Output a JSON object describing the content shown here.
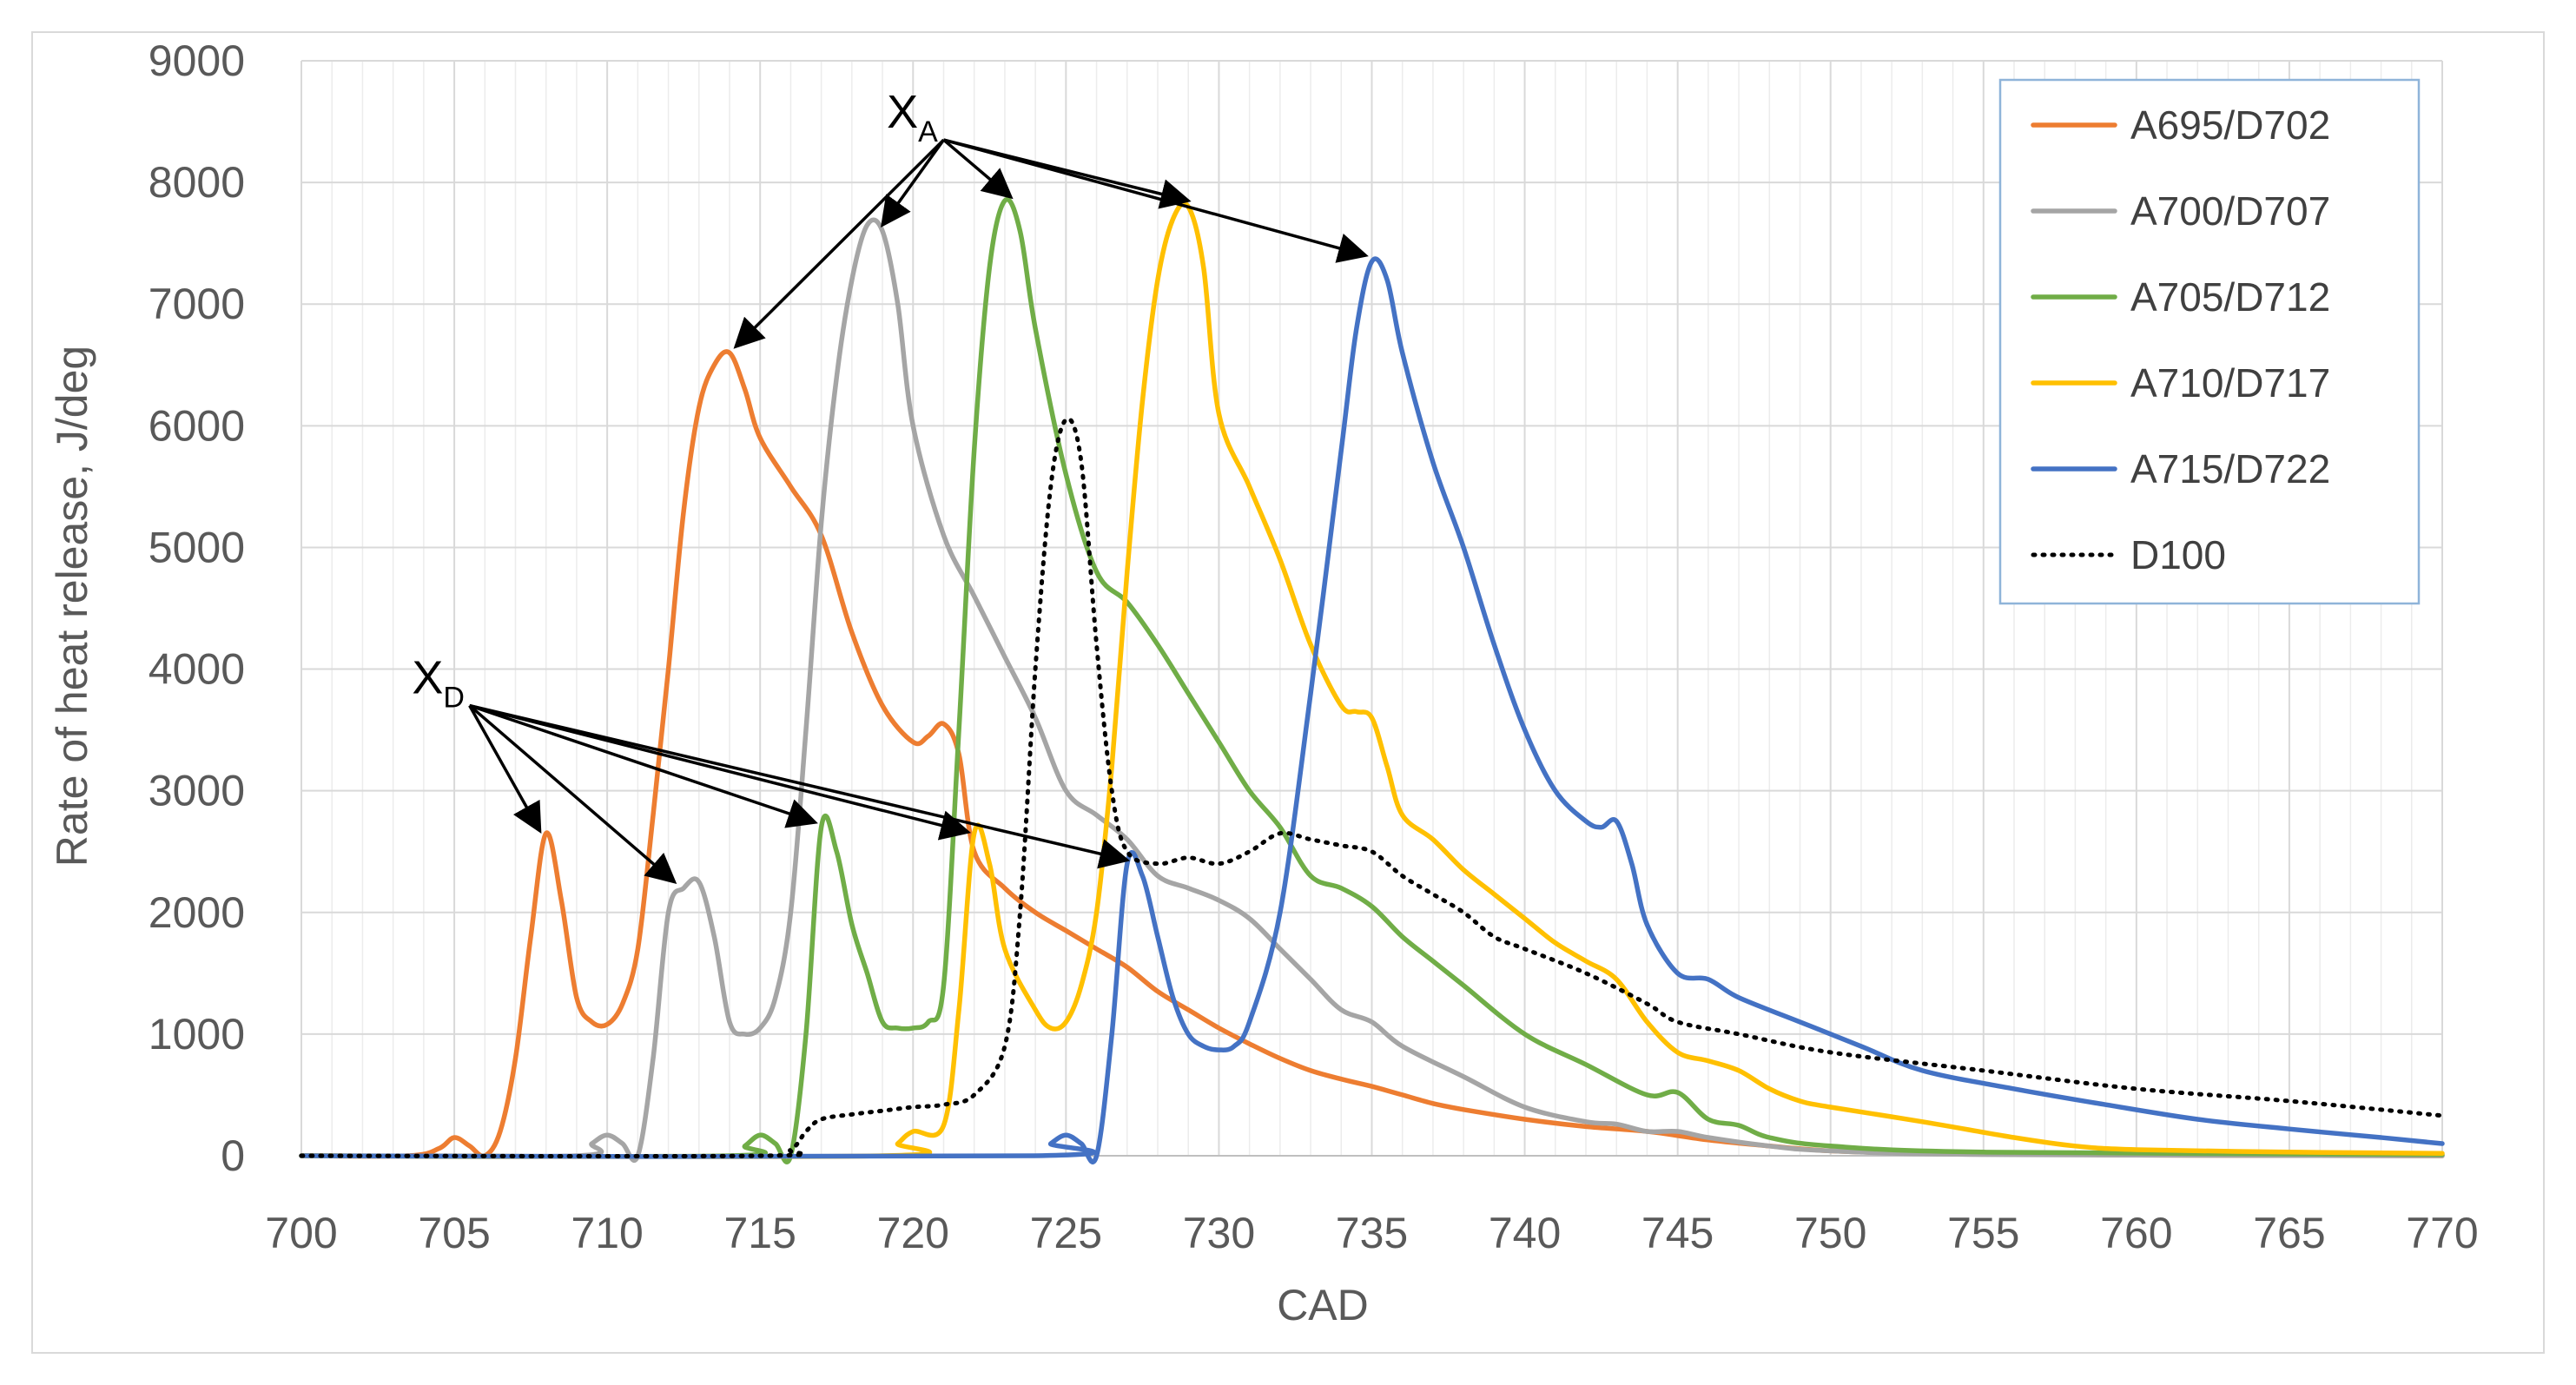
{
  "chart_data": {
    "type": "line",
    "title": "",
    "xlabel": "CAD",
    "ylabel": "Rate of heat release, J/deg",
    "xlim": [
      700,
      770
    ],
    "ylim": [
      0,
      9000
    ],
    "x_ticks": [
      700,
      705,
      710,
      715,
      720,
      725,
      730,
      735,
      740,
      745,
      750,
      755,
      760,
      765,
      770
    ],
    "y_ticks": [
      0,
      1000,
      2000,
      3000,
      4000,
      5000,
      6000,
      7000,
      8000,
      9000
    ],
    "grid": true,
    "legend_position": "top-right",
    "series": [
      {
        "name": "A695/D702",
        "color": "#ed7d31",
        "style": "solid",
        "points": [
          [
            700,
            0
          ],
          [
            703.5,
            0
          ],
          [
            704.5,
            60
          ],
          [
            705,
            150
          ],
          [
            705.5,
            80
          ],
          [
            706,
            0
          ],
          [
            706.5,
            200
          ],
          [
            707,
            800
          ],
          [
            707.5,
            1800
          ],
          [
            708,
            2650
          ],
          [
            708.5,
            2100
          ],
          [
            709,
            1300
          ],
          [
            709.5,
            1100
          ],
          [
            710,
            1080
          ],
          [
            710.5,
            1250
          ],
          [
            711,
            1700
          ],
          [
            711.5,
            2800
          ],
          [
            712,
            4000
          ],
          [
            712.5,
            5300
          ],
          [
            713,
            6150
          ],
          [
            713.5,
            6500
          ],
          [
            714,
            6600
          ],
          [
            714.5,
            6300
          ],
          [
            715,
            5900
          ],
          [
            716,
            5500
          ],
          [
            717,
            5100
          ],
          [
            718,
            4300
          ],
          [
            719,
            3700
          ],
          [
            720,
            3400
          ],
          [
            720.5,
            3450
          ],
          [
            721,
            3550
          ],
          [
            721.5,
            3300
          ],
          [
            722,
            2500
          ],
          [
            723,
            2200
          ],
          [
            724,
            2000
          ],
          [
            725,
            1850
          ],
          [
            726,
            1700
          ],
          [
            727,
            1550
          ],
          [
            728,
            1350
          ],
          [
            729,
            1200
          ],
          [
            730,
            1050
          ],
          [
            731,
            920
          ],
          [
            732,
            800
          ],
          [
            733,
            700
          ],
          [
            734,
            630
          ],
          [
            735,
            570
          ],
          [
            736,
            500
          ],
          [
            737,
            430
          ],
          [
            738,
            380
          ],
          [
            740,
            300
          ],
          [
            742,
            240
          ],
          [
            744,
            200
          ],
          [
            746,
            130
          ],
          [
            748,
            80
          ],
          [
            750,
            40
          ],
          [
            753,
            20
          ],
          [
            760,
            5
          ],
          [
            770,
            0
          ]
        ]
      },
      {
        "name": "A700/D707",
        "color": "#a5a5a5",
        "style": "solid",
        "points": [
          [
            700,
            0
          ],
          [
            709,
            0
          ],
          [
            709.5,
            100
          ],
          [
            710,
            170
          ],
          [
            710.5,
            100
          ],
          [
            711,
            0
          ],
          [
            711.5,
            800
          ],
          [
            712,
            2000
          ],
          [
            712.5,
            2200
          ],
          [
            713,
            2250
          ],
          [
            713.5,
            1800
          ],
          [
            714,
            1100
          ],
          [
            714.5,
            1000
          ],
          [
            715,
            1050
          ],
          [
            715.5,
            1300
          ],
          [
            716,
            2000
          ],
          [
            716.5,
            3500
          ],
          [
            717,
            5200
          ],
          [
            717.5,
            6400
          ],
          [
            718,
            7200
          ],
          [
            718.5,
            7650
          ],
          [
            719,
            7600
          ],
          [
            719.5,
            7000
          ],
          [
            720,
            6000
          ],
          [
            721,
            5100
          ],
          [
            722,
            4600
          ],
          [
            723,
            4100
          ],
          [
            724,
            3600
          ],
          [
            725,
            3000
          ],
          [
            726,
            2800
          ],
          [
            727,
            2600
          ],
          [
            728,
            2300
          ],
          [
            729,
            2200
          ],
          [
            730,
            2100
          ],
          [
            731,
            1950
          ],
          [
            732,
            1700
          ],
          [
            733,
            1450
          ],
          [
            734,
            1200
          ],
          [
            735,
            1100
          ],
          [
            736,
            900
          ],
          [
            738,
            650
          ],
          [
            740,
            400
          ],
          [
            742,
            280
          ],
          [
            743,
            260
          ],
          [
            744,
            200
          ],
          [
            745,
            200
          ],
          [
            746,
            150
          ],
          [
            748,
            80
          ],
          [
            750,
            40
          ],
          [
            755,
            10
          ],
          [
            770,
            0
          ]
        ]
      },
      {
        "name": "A705/D712",
        "color": "#70ad47",
        "style": "solid",
        "points": [
          [
            700,
            0
          ],
          [
            714,
            0
          ],
          [
            714.5,
            80
          ],
          [
            715,
            170
          ],
          [
            715.5,
            100
          ],
          [
            716,
            0
          ],
          [
            716.5,
            1000
          ],
          [
            717,
            2700
          ],
          [
            717.5,
            2500
          ],
          [
            718,
            1900
          ],
          [
            718.5,
            1500
          ],
          [
            719,
            1100
          ],
          [
            719.5,
            1050
          ],
          [
            720,
            1050
          ],
          [
            720.5,
            1100
          ],
          [
            721,
            1400
          ],
          [
            721.5,
            3500
          ],
          [
            722,
            5800
          ],
          [
            722.5,
            7300
          ],
          [
            723,
            7850
          ],
          [
            723.5,
            7600
          ],
          [
            724,
            6800
          ],
          [
            725,
            5600
          ],
          [
            726,
            4800
          ],
          [
            727,
            4550
          ],
          [
            728,
            4200
          ],
          [
            729,
            3800
          ],
          [
            730,
            3400
          ],
          [
            731,
            3000
          ],
          [
            732,
            2700
          ],
          [
            733,
            2300
          ],
          [
            734,
            2200
          ],
          [
            735,
            2050
          ],
          [
            736,
            1800
          ],
          [
            737,
            1600
          ],
          [
            738,
            1400
          ],
          [
            740,
            1000
          ],
          [
            742,
            750
          ],
          [
            744,
            500
          ],
          [
            745,
            520
          ],
          [
            746,
            300
          ],
          [
            747,
            250
          ],
          [
            748,
            150
          ],
          [
            750,
            80
          ],
          [
            755,
            30
          ],
          [
            770,
            10
          ]
        ]
      },
      {
        "name": "A710/D717",
        "color": "#ffc000",
        "style": "solid",
        "points": [
          [
            700,
            0
          ],
          [
            719,
            0
          ],
          [
            719.5,
            100
          ],
          [
            720,
            200
          ],
          [
            721,
            250
          ],
          [
            721.5,
            1200
          ],
          [
            722,
            2650
          ],
          [
            722.5,
            2400
          ],
          [
            723,
            1700
          ],
          [
            724,
            1200
          ],
          [
            724.5,
            1050
          ],
          [
            725,
            1100
          ],
          [
            725.5,
            1400
          ],
          [
            726,
            2000
          ],
          [
            726.5,
            3200
          ],
          [
            727,
            4800
          ],
          [
            727.5,
            6200
          ],
          [
            728,
            7200
          ],
          [
            728.5,
            7700
          ],
          [
            729,
            7800
          ],
          [
            729.5,
            7300
          ],
          [
            730,
            6100
          ],
          [
            731,
            5500
          ],
          [
            732,
            4900
          ],
          [
            733,
            4200
          ],
          [
            734,
            3700
          ],
          [
            734.5,
            3650
          ],
          [
            735,
            3600
          ],
          [
            735.5,
            3200
          ],
          [
            736,
            2800
          ],
          [
            737,
            2600
          ],
          [
            738,
            2350
          ],
          [
            739,
            2150
          ],
          [
            740,
            1950
          ],
          [
            741,
            1750
          ],
          [
            742,
            1600
          ],
          [
            743,
            1450
          ],
          [
            744,
            1100
          ],
          [
            745,
            850
          ],
          [
            746,
            780
          ],
          [
            747,
            700
          ],
          [
            748,
            550
          ],
          [
            749,
            450
          ],
          [
            750,
            400
          ],
          [
            753,
            280
          ],
          [
            756,
            150
          ],
          [
            758,
            80
          ],
          [
            760,
            50
          ],
          [
            765,
            30
          ],
          [
            770,
            20
          ]
        ]
      },
      {
        "name": "A715/D722",
        "color": "#4472c4",
        "style": "solid",
        "points": [
          [
            700,
            0
          ],
          [
            724,
            0
          ],
          [
            724.5,
            100
          ],
          [
            725,
            170
          ],
          [
            725.5,
            100
          ],
          [
            726,
            0
          ],
          [
            726.5,
            1000
          ],
          [
            727,
            2400
          ],
          [
            727.5,
            2300
          ],
          [
            728,
            1800
          ],
          [
            728.5,
            1300
          ],
          [
            729,
            1000
          ],
          [
            729.5,
            900
          ],
          [
            730,
            870
          ],
          [
            730.5,
            900
          ],
          [
            731,
            1100
          ],
          [
            732,
            2000
          ],
          [
            733,
            3800
          ],
          [
            734,
            5800
          ],
          [
            734.5,
            6800
          ],
          [
            735,
            7350
          ],
          [
            735.5,
            7200
          ],
          [
            736,
            6600
          ],
          [
            737,
            5700
          ],
          [
            738,
            5000
          ],
          [
            739,
            4200
          ],
          [
            740,
            3500
          ],
          [
            741,
            3000
          ],
          [
            742,
            2750
          ],
          [
            742.5,
            2700
          ],
          [
            743,
            2750
          ],
          [
            743.5,
            2400
          ],
          [
            744,
            1900
          ],
          [
            745,
            1500
          ],
          [
            746,
            1450
          ],
          [
            747,
            1300
          ],
          [
            749,
            1100
          ],
          [
            751,
            900
          ],
          [
            753,
            700
          ],
          [
            756,
            550
          ],
          [
            759,
            420
          ],
          [
            762,
            300
          ],
          [
            765,
            220
          ],
          [
            768,
            150
          ],
          [
            770,
            100
          ]
        ]
      },
      {
        "name": "D100",
        "color": "#000000",
        "style": "dotted",
        "points": [
          [
            700,
            0
          ],
          [
            715,
            0
          ],
          [
            716,
            50
          ],
          [
            716.5,
            200
          ],
          [
            717,
            300
          ],
          [
            718,
            340
          ],
          [
            719,
            370
          ],
          [
            720,
            400
          ],
          [
            721,
            420
          ],
          [
            722,
            500
          ],
          [
            723,
            900
          ],
          [
            723.5,
            2000
          ],
          [
            724,
            4000
          ],
          [
            724.5,
            5500
          ],
          [
            725,
            6050
          ],
          [
            725.5,
            5700
          ],
          [
            726,
            4200
          ],
          [
            726.5,
            3000
          ],
          [
            727,
            2500
          ],
          [
            728,
            2400
          ],
          [
            729,
            2450
          ],
          [
            730,
            2400
          ],
          [
            731,
            2500
          ],
          [
            732,
            2650
          ],
          [
            733,
            2600
          ],
          [
            734,
            2550
          ],
          [
            735,
            2500
          ],
          [
            736,
            2300
          ],
          [
            737,
            2150
          ],
          [
            738,
            2000
          ],
          [
            739,
            1800
          ],
          [
            740,
            1700
          ],
          [
            742,
            1500
          ],
          [
            744,
            1250
          ],
          [
            745,
            1100
          ],
          [
            747,
            1000
          ],
          [
            750,
            850
          ],
          [
            755,
            700
          ],
          [
            760,
            550
          ],
          [
            765,
            450
          ],
          [
            770,
            330
          ]
        ]
      }
    ],
    "annotations": [
      {
        "label_main": "X",
        "label_sub": "A",
        "origin": [
          721,
          8350
        ],
        "targets": [
          [
            714.2,
            6650
          ],
          [
            719,
            7650
          ],
          [
            723.2,
            7880
          ],
          [
            729,
            7850
          ],
          [
            734.8,
            7400
          ]
        ]
      },
      {
        "label_main": "X",
        "label_sub": "D",
        "origin": [
          705.5,
          3700
        ],
        "targets": [
          [
            707.8,
            2670
          ],
          [
            712.2,
            2250
          ],
          [
            716.8,
            2740
          ],
          [
            721.8,
            2660
          ],
          [
            727,
            2430
          ]
        ]
      }
    ]
  }
}
